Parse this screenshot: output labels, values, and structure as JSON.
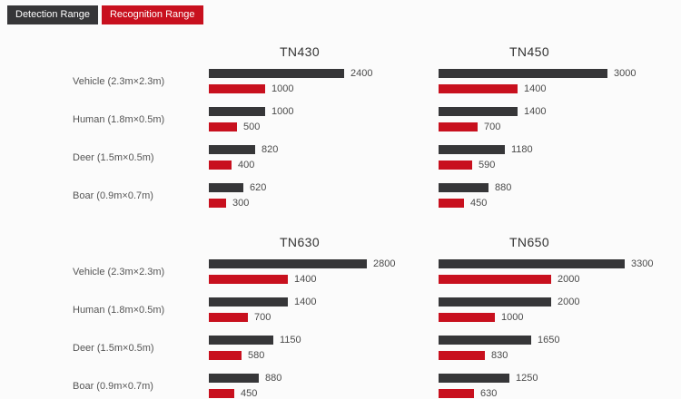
{
  "legend": {
    "detection_label": "Detection Range",
    "recognition_label": "Recognition Range"
  },
  "colors": {
    "detection": "#363638",
    "recognition": "#c8101e"
  },
  "categories": [
    "Vehicle (2.3m×2.3m)",
    "Human (1.8m×0.5m)",
    "Deer (1.5m×0.5m)",
    "Boar (0.9m×0.7m)"
  ],
  "chart_data": [
    {
      "type": "bar",
      "title": "TN430",
      "orientation": "horizontal",
      "grid": false,
      "legend_position": "top-left",
      "categories": [
        "Vehicle (2.3m×2.3m)",
        "Human (1.8m×0.5m)",
        "Deer (1.5m×0.5m)",
        "Boar (0.9m×0.7m)"
      ],
      "series": [
        {
          "name": "Detection Range",
          "values": [
            2400,
            1000,
            820,
            620
          ]
        },
        {
          "name": "Recognition Range",
          "values": [
            1000,
            500,
            400,
            300
          ]
        }
      ]
    },
    {
      "type": "bar",
      "title": "TN450",
      "orientation": "horizontal",
      "grid": false,
      "legend_position": "top-left",
      "categories": [
        "Vehicle (2.3m×2.3m)",
        "Human (1.8m×0.5m)",
        "Deer (1.5m×0.5m)",
        "Boar (0.9m×0.7m)"
      ],
      "series": [
        {
          "name": "Detection Range",
          "values": [
            3000,
            1400,
            1180,
            880
          ]
        },
        {
          "name": "Recognition Range",
          "values": [
            1400,
            700,
            590,
            450
          ]
        }
      ]
    },
    {
      "type": "bar",
      "title": "TN630",
      "orientation": "horizontal",
      "grid": false,
      "legend_position": "top-left",
      "categories": [
        "Vehicle (2.3m×2.3m)",
        "Human (1.8m×0.5m)",
        "Deer (1.5m×0.5m)",
        "Boar (0.9m×0.7m)"
      ],
      "series": [
        {
          "name": "Detection Range",
          "values": [
            2800,
            1400,
            1150,
            880
          ]
        },
        {
          "name": "Recognition Range",
          "values": [
            1400,
            700,
            580,
            450
          ]
        }
      ]
    },
    {
      "type": "bar",
      "title": "TN650",
      "orientation": "horizontal",
      "grid": false,
      "legend_position": "top-left",
      "categories": [
        "Vehicle (2.3m×2.3m)",
        "Human (1.8m×0.5m)",
        "Deer (1.5m×0.5m)",
        "Boar (0.9m×0.7m)"
      ],
      "series": [
        {
          "name": "Detection Range",
          "values": [
            3300,
            2000,
            1650,
            1250
          ]
        },
        {
          "name": "Recognition Range",
          "values": [
            2000,
            1000,
            830,
            630
          ]
        }
      ]
    }
  ]
}
